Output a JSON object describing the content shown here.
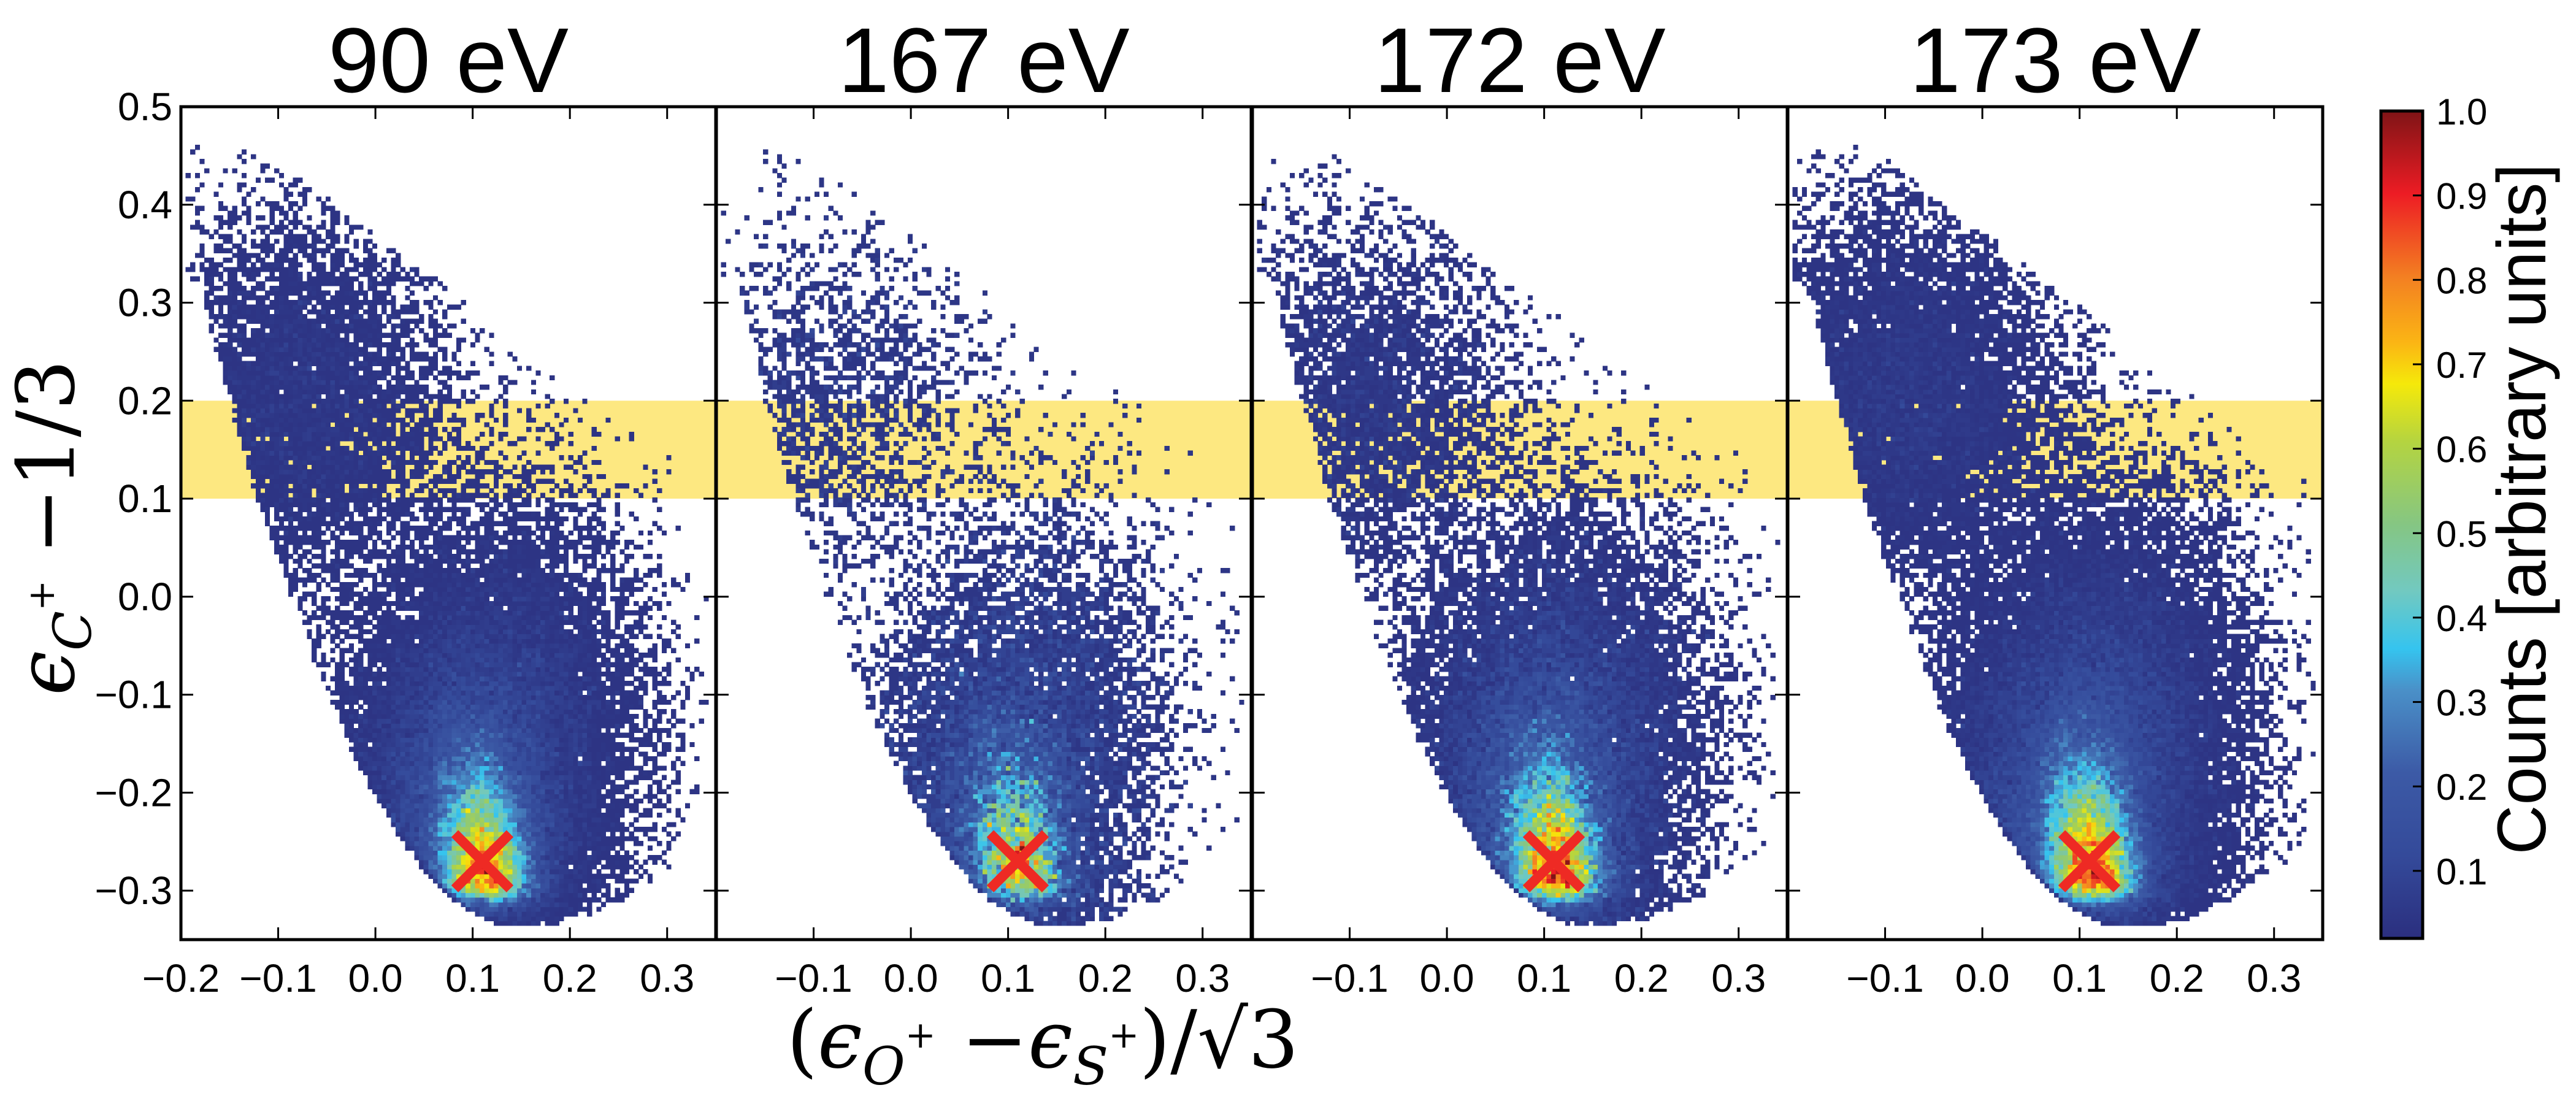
{
  "chart_data": {
    "type": "heatmap",
    "description_of_marks": "2D histograms",
    "panels": [
      {
        "title": "90 eV",
        "x_tick_labels": [
          "−0.2",
          "−0.1",
          "0.0",
          "0.1",
          "0.2",
          "0.3"
        ],
        "x_ticks": [
          -0.2,
          -0.1,
          0.0,
          0.1,
          0.2,
          0.3
        ]
      },
      {
        "title": "167 eV",
        "x_tick_labels": [
          "−0.1",
          "0.0",
          "0.1",
          "0.2",
          "0.3"
        ],
        "x_ticks": [
          -0.1,
          0.0,
          0.1,
          0.2,
          0.3
        ]
      },
      {
        "title": "172 eV",
        "x_tick_labels": [
          "−0.1",
          "0.0",
          "0.1",
          "0.2",
          "0.3"
        ],
        "x_ticks": [
          -0.1,
          0.0,
          0.1,
          0.2,
          0.3
        ]
      },
      {
        "title": "173 eV",
        "x_tick_labels": [
          "−0.1",
          "0.0",
          "0.1",
          "0.2",
          "0.3"
        ],
        "x_ticks": [
          -0.1,
          0.0,
          0.1,
          0.2,
          0.3
        ]
      }
    ],
    "xlim": [
      -0.2,
      0.35
    ],
    "ylim": [
      -0.35,
      0.5
    ],
    "y_ticks": [
      -0.3,
      -0.2,
      -0.1,
      0.0,
      0.1,
      0.2,
      0.3,
      0.4,
      0.5
    ],
    "y_tick_labels": [
      "−0.3",
      "−0.2",
      "−0.1",
      "0.0",
      "0.1",
      "0.2",
      "0.3",
      "0.4",
      "0.5"
    ],
    "xlabel": {
      "open": "(",
      "eps1": "ϵ",
      "sub1": "O",
      "sup1": "+",
      "minus": " −",
      "eps2": "ϵ",
      "sub2": "S",
      "sup2": "+",
      "close": ")/√3"
    },
    "ylabel": {
      "eps": "ϵ",
      "sub": "C",
      "sup": "+",
      "rest": " −1/3"
    },
    "highlight_band": {
      "y_range": [
        0.1,
        0.2
      ],
      "color": "#fde881"
    },
    "peak_marker": {
      "x": 0.11,
      "y": -0.27,
      "symbol": "x",
      "color": "#ee2a24"
    },
    "peak_region": {
      "x": 0.11,
      "y": -0.27
    },
    "grid": false,
    "colorbar": {
      "label": "Counts [arbitrary units]",
      "range": [
        0.02,
        1.0
      ],
      "ticks": [
        0.1,
        0.2,
        0.3,
        0.4,
        0.5,
        0.6,
        0.7,
        0.8,
        0.9,
        1.0
      ],
      "tick_labels": [
        "0.1",
        "0.2",
        "0.3",
        "0.4",
        "0.5",
        "0.6",
        "0.7",
        "0.8",
        "0.9",
        "1.0"
      ],
      "colormap": [
        "#2b2f7f",
        "#344a9a",
        "#3c5aa6",
        "#4a90c8",
        "#35c4ef",
        "#72c9c0",
        "#85c683",
        "#b4d440",
        "#f5e90a",
        "#fbb514",
        "#f37f22",
        "#ed1c24",
        "#7f1416"
      ],
      "placement": "right"
    }
  }
}
